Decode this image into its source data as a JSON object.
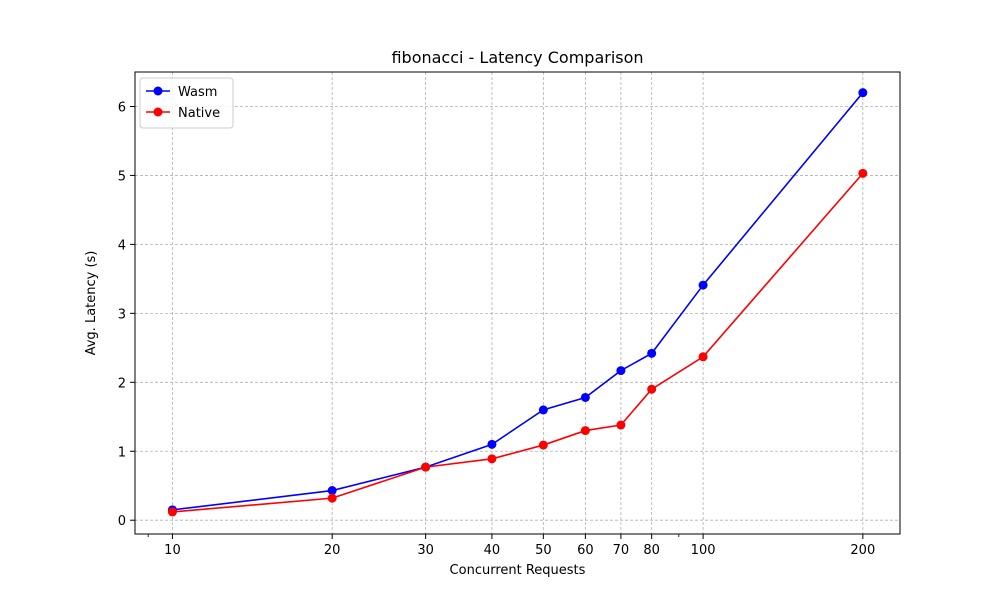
{
  "chart_data": {
    "type": "line",
    "title": "fibonacci - Latency Comparison",
    "xlabel": "Concurrent Requests",
    "ylabel": "Avg. Latency (s)",
    "xscale": "log",
    "xlim": [
      8.5,
      235
    ],
    "ylim": [
      -0.2,
      6.5
    ],
    "x": [
      10,
      20,
      30,
      40,
      50,
      60,
      70,
      80,
      100,
      200
    ],
    "x_tick_labels": [
      "10",
      "20",
      "30",
      "40",
      "50",
      "60",
      "70",
      "80",
      "100",
      "200"
    ],
    "y_ticks": [
      0,
      1,
      2,
      3,
      4,
      5,
      6
    ],
    "grid": true,
    "legend_position": "top-left",
    "series": [
      {
        "name": "Wasm",
        "color": "#0000ff",
        "marker": "circle",
        "values": [
          0.15,
          0.43,
          0.77,
          1.1,
          1.6,
          1.78,
          2.17,
          2.42,
          3.41,
          6.2
        ]
      },
      {
        "name": "Native",
        "color": "#ff0000",
        "marker": "circle",
        "values": [
          0.12,
          0.32,
          0.77,
          0.89,
          1.09,
          1.3,
          1.38,
          1.9,
          2.37,
          5.03
        ]
      }
    ]
  }
}
